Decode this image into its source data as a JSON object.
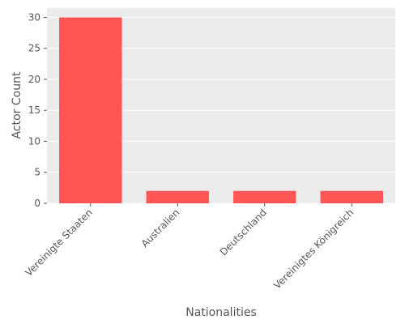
{
  "chart_data": {
    "type": "bar",
    "title": "",
    "xlabel": "Nationalities",
    "ylabel": "Actor Count",
    "categories": [
      "Vereinigte Staaten",
      "Australien",
      "Deutschland",
      "Vereinigtes Königreich"
    ],
    "values": [
      30,
      2,
      2,
      2
    ],
    "ylim": [
      0,
      31.5
    ],
    "yticks": [
      0,
      5,
      10,
      15,
      20,
      25,
      30
    ],
    "grid": true,
    "legend": "none",
    "colors": {
      "bar": "#ff5555",
      "background": "#ebebeb",
      "grid": "#ffffff"
    }
  }
}
